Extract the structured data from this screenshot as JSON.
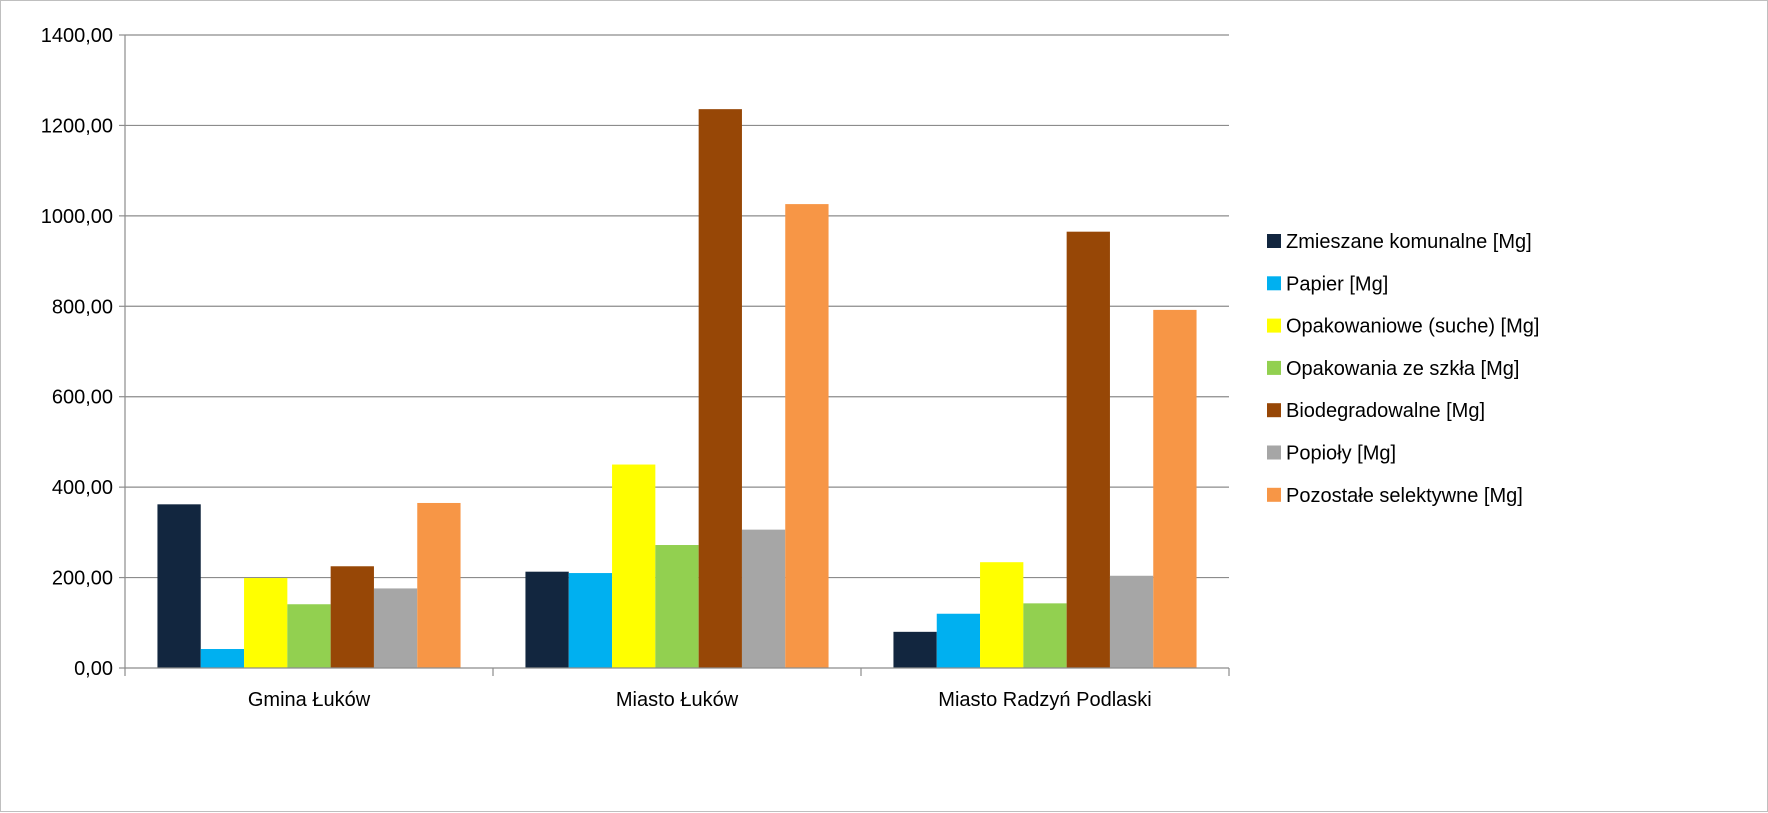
{
  "chart_data": {
    "type": "bar",
    "categories": [
      "Gmina Łuków",
      "Miasto Łuków",
      "Miasto Radzyń Podlaski"
    ],
    "series": [
      {
        "name": "Zmieszane komunalne [Mg]",
        "color": "#12263F",
        "values": [
          362,
          213,
          80
        ]
      },
      {
        "name": "Papier [Mg]",
        "color": "#00B0F0",
        "values": [
          42,
          210,
          120
        ]
      },
      {
        "name": "Opakowaniowe (suche) [Mg]",
        "color": "#FFFF00",
        "values": [
          199,
          450,
          234
        ]
      },
      {
        "name": "Opakowania ze szkła [Mg]",
        "color": "#92D050",
        "values": [
          141,
          272,
          143
        ]
      },
      {
        "name": "Biodegradowalne [Mg]",
        "color": "#974706",
        "values": [
          225,
          1236,
          965
        ]
      },
      {
        "name": "Popioły [Mg]",
        "color": "#A6A6A6",
        "values": [
          176,
          306,
          204
        ]
      },
      {
        "name": "Pozostałe selektywne [Mg]",
        "color": "#F79646",
        "values": [
          365,
          1026,
          792
        ]
      }
    ],
    "y_ticks": [
      "0,00",
      "200,00",
      "400,00",
      "600,00",
      "800,00",
      "1000,00",
      "1200,00",
      "1400,00"
    ],
    "ylim": [
      0,
      1400
    ],
    "grid": true,
    "legend_position": "right"
  }
}
